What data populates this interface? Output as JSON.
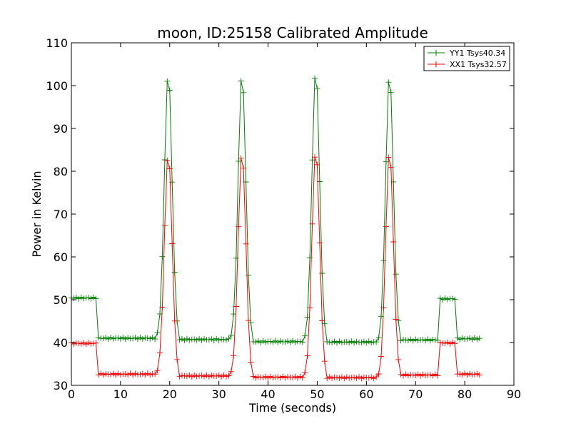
{
  "chart_data": {
    "type": "line",
    "title": "moon, ID:25158 Calibrated Amplitude",
    "xlabel": "Time (seconds)",
    "ylabel": "Power in Kelvin",
    "xlim": [
      0,
      90
    ],
    "ylim": [
      30,
      110
    ],
    "xticks": [
      0,
      10,
      20,
      30,
      40,
      50,
      60,
      70,
      80,
      90
    ],
    "yticks": [
      30,
      40,
      50,
      60,
      70,
      80,
      90,
      100,
      110
    ],
    "legend_position": "top-right",
    "sample_interval_seconds": 0.5,
    "series": [
      {
        "name": "YY1 Tsys40.34",
        "color": "#008000",
        "marker": "+",
        "segments": [
          {
            "x_start": 0,
            "x_end": 5,
            "value": 50.4
          },
          {
            "x_start": 5.5,
            "x_end": 17,
            "value": 41.0
          },
          {
            "x_start": 22,
            "x_end": 32,
            "value": 40.7
          },
          {
            "x_start": 37,
            "x_end": 47,
            "value": 40.2
          },
          {
            "x_start": 52,
            "x_end": 62,
            "value": 40.1
          },
          {
            "x_start": 67,
            "x_end": 74.5,
            "value": 40.6
          },
          {
            "x_start": 75,
            "x_end": 78,
            "value": 50.2
          },
          {
            "x_start": 78.5,
            "x_end": 83,
            "value": 40.9
          }
        ],
        "peaks": [
          {
            "x": 19.7,
            "value": 103.2,
            "base_before": 41.0,
            "base_after": 40.7
          },
          {
            "x": 34.7,
            "value": 103.0,
            "base_before": 40.7,
            "base_after": 40.2
          },
          {
            "x": 49.7,
            "value": 103.8,
            "base_before": 40.2,
            "base_after": 40.1
          },
          {
            "x": 64.7,
            "value": 102.9,
            "base_before": 40.1,
            "base_after": 40.6
          }
        ]
      },
      {
        "name": "XX1 Tsys32.57",
        "color": "#ff0000",
        "marker": "+",
        "segments": [
          {
            "x_start": 0,
            "x_end": 5,
            "value": 39.8
          },
          {
            "x_start": 5.5,
            "x_end": 17,
            "value": 32.6
          },
          {
            "x_start": 22,
            "x_end": 32,
            "value": 32.2
          },
          {
            "x_start": 37,
            "x_end": 47,
            "value": 31.9
          },
          {
            "x_start": 52,
            "x_end": 62,
            "value": 31.8
          },
          {
            "x_start": 67,
            "x_end": 74.5,
            "value": 32.4
          },
          {
            "x_start": 75,
            "x_end": 78,
            "value": 39.9
          },
          {
            "x_start": 78.5,
            "x_end": 83,
            "value": 32.6
          }
        ],
        "peaks": [
          {
            "x": 19.7,
            "value": 84.3,
            "base_before": 32.6,
            "base_after": 32.2
          },
          {
            "x": 34.7,
            "value": 84.6,
            "base_before": 32.2,
            "base_after": 31.9
          },
          {
            "x": 49.7,
            "value": 85.2,
            "base_before": 31.9,
            "base_after": 31.8
          },
          {
            "x": 64.7,
            "value": 84.8,
            "base_before": 31.8,
            "base_after": 32.4
          }
        ]
      }
    ]
  }
}
